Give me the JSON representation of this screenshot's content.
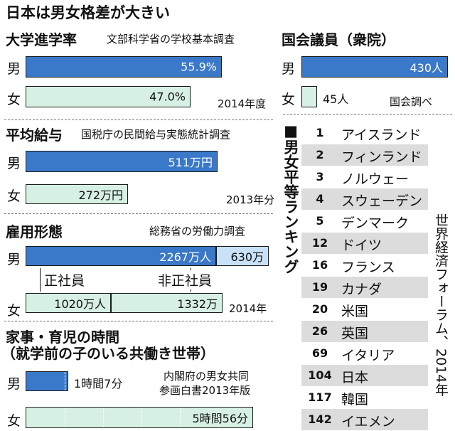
{
  "title": "日本は男女格差が大きい",
  "chart_data": [
    {
      "type": "bar",
      "title": "大学進学率",
      "source": "文部科学省の学校基本調査",
      "categories": [
        "男",
        "女"
      ],
      "values": [
        55.9,
        47.0
      ],
      "value_labels": [
        "55.9%",
        "47.0%"
      ],
      "note": "2014年度"
    },
    {
      "type": "bar",
      "title": "国会議員（衆院）",
      "source": "国会調べ",
      "categories": [
        "男",
        "女"
      ],
      "values": [
        430,
        45
      ],
      "value_labels": [
        "430人",
        "45人"
      ]
    },
    {
      "type": "bar",
      "title": "平均給与",
      "source": "国税庁の民間給与実態統計調査",
      "categories": [
        "男",
        "女"
      ],
      "values": [
        511,
        272
      ],
      "value_labels": [
        "511万円",
        "272万円"
      ],
      "note": "2013年分"
    },
    {
      "type": "bar",
      "title": "雇用形態",
      "source": "総務省の労働力調査",
      "categories": [
        "男",
        "女"
      ],
      "series": [
        {
          "name": "正社員",
          "values": [
            2267,
            1020
          ],
          "value_labels": [
            "2267万人",
            "1020万人"
          ]
        },
        {
          "name": "非正社員",
          "values": [
            630,
            1332
          ],
          "value_labels": [
            "630万",
            "1332万"
          ]
        }
      ],
      "note": "2014年"
    },
    {
      "type": "bar",
      "title_line1": "家事・育児の時間",
      "title_line2": "（就学前の子のいる共働き世帯）",
      "source_line1": "内閣府の男女共同",
      "source_line2": "参画白書2013年版",
      "categories": [
        "男",
        "女"
      ],
      "values": [
        67,
        356
      ],
      "value_labels": [
        "1時間7分",
        "5時間56分"
      ]
    },
    {
      "type": "table",
      "title": "男女平等ランキング",
      "source": "世界経済フォーラム、2014年",
      "rows": [
        {
          "rank": "1",
          "country": "アイスランド"
        },
        {
          "rank": "2",
          "country": "フィンランド"
        },
        {
          "rank": "3",
          "country": "ノルウェー"
        },
        {
          "rank": "4",
          "country": "スウェーデン"
        },
        {
          "rank": "5",
          "country": "デンマーク"
        },
        {
          "rank": "12",
          "country": "ドイツ"
        },
        {
          "rank": "16",
          "country": "フランス"
        },
        {
          "rank": "19",
          "country": "カナダ"
        },
        {
          "rank": "20",
          "country": "米国"
        },
        {
          "rank": "26",
          "country": "英国"
        },
        {
          "rank": "69",
          "country": "イタリア"
        },
        {
          "rank": "104",
          "country": "日本"
        },
        {
          "rank": "117",
          "country": "韓国"
        },
        {
          "rank": "142",
          "country": "イエメン"
        }
      ]
    }
  ],
  "colors": {
    "male_bar": "#3a78c9",
    "female_bar": "#d7f0e4",
    "nonregular_male": "#c8e1f7",
    "rank_shade": "#dcdcdc"
  },
  "ranking_bullet": "■"
}
